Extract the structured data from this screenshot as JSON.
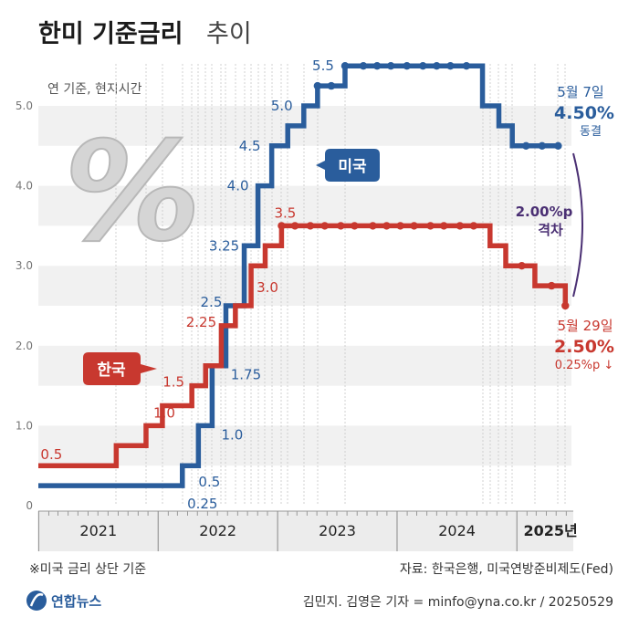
{
  "title": {
    "bold": "한미 기준금리",
    "light": "추이"
  },
  "subtitle": "연 기준, 현지시간",
  "footnote": "※미국 금리 상단 기준",
  "source": "자료: 한국은행, 미국연방준비제도(Fed)",
  "credit": "김민지. 김영은 기자 = minfo@yna.co.kr / 20250529",
  "logo_text": "연합뉴스",
  "chart_data": {
    "type": "line",
    "step": true,
    "ylim": [
      0,
      5.5
    ],
    "y_ticks": [
      "0",
      "1.0",
      "2.0",
      "3.0",
      "4.0",
      "5.0"
    ],
    "y_tick_values": [
      0,
      1.0,
      2.0,
      3.0,
      4.0,
      5.0
    ],
    "year_labels": [
      "2021",
      "2022",
      "2023",
      "2024",
      "2025년"
    ],
    "grid": "horizontal bands",
    "series": [
      {
        "name": "미국",
        "color": "#2a5d9c",
        "points": [
          [
            "2020-12-31",
            0.25
          ],
          [
            "2022-03-16",
            0.5
          ],
          [
            "2022-05-04",
            1.0
          ],
          [
            "2022-06-15",
            1.75
          ],
          [
            "2022-07-27",
            2.5
          ],
          [
            "2022-09-21",
            3.25
          ],
          [
            "2022-11-02",
            4.0
          ],
          [
            "2022-12-14",
            4.5
          ],
          [
            "2023-02-01",
            4.75
          ],
          [
            "2023-03-22",
            5.0
          ],
          [
            "2023-05-03",
            5.25
          ],
          [
            "2023-07-26",
            5.5
          ],
          [
            "2024-09-18",
            5.0
          ],
          [
            "2024-11-07",
            4.75
          ],
          [
            "2024-12-18",
            4.5
          ],
          [
            "2025-05-07",
            4.5
          ]
        ],
        "markers": [
          [
            "2023-05-03",
            5.25
          ],
          [
            "2023-06-14",
            5.25
          ],
          [
            "2023-07-26",
            5.5
          ],
          [
            "2023-09-20",
            5.5
          ],
          [
            "2023-11-01",
            5.5
          ],
          [
            "2023-12-13",
            5.5
          ],
          [
            "2024-01-31",
            5.5
          ],
          [
            "2024-03-20",
            5.5
          ],
          [
            "2024-05-01",
            5.5
          ],
          [
            "2024-06-12",
            5.5
          ],
          [
            "2024-07-31",
            5.5
          ],
          [
            "2025-01-29",
            4.5
          ],
          [
            "2025-03-19",
            4.5
          ],
          [
            "2025-05-07",
            4.5
          ]
        ],
        "labels": [
          {
            "text": "0.25",
            "at": [
              "2022-03-16",
              0.25
            ]
          },
          {
            "text": "0.5",
            "at": [
              "2022-05-04",
              0.5
            ]
          },
          {
            "text": "1.0",
            "at": [
              "2022-06-15",
              1.0
            ]
          },
          {
            "text": "1.75",
            "at": [
              "2022-07-27",
              1.75
            ]
          },
          {
            "text": "2.5",
            "at": [
              "2022-07-27",
              2.5
            ]
          },
          {
            "text": "3.25",
            "at": [
              "2022-09-21",
              3.25
            ]
          },
          {
            "text": "4.0",
            "at": [
              "2022-11-02",
              4.0
            ]
          },
          {
            "text": "4.5",
            "at": [
              "2022-12-14",
              4.5
            ]
          },
          {
            "text": "5.0",
            "at": [
              "2023-03-22",
              5.0
            ]
          },
          {
            "text": "5.5",
            "at": [
              "2023-07-26",
              5.5
            ]
          }
        ],
        "end_annotation": {
          "date": "5월 7일",
          "value": "4.50%",
          "note": "동결"
        }
      },
      {
        "name": "한국",
        "color": "#c8382f",
        "points": [
          [
            "2020-12-31",
            0.5
          ],
          [
            "2021-08-26",
            0.75
          ],
          [
            "2021-11-25",
            1.0
          ],
          [
            "2022-01-14",
            1.25
          ],
          [
            "2022-04-14",
            1.5
          ],
          [
            "2022-05-26",
            1.75
          ],
          [
            "2022-07-13",
            2.25
          ],
          [
            "2022-08-25",
            2.5
          ],
          [
            "2022-10-12",
            3.0
          ],
          [
            "2022-11-24",
            3.25
          ],
          [
            "2023-01-13",
            3.5
          ],
          [
            "2024-10-11",
            3.25
          ],
          [
            "2024-11-28",
            3.0
          ],
          [
            "2025-02-25",
            2.75
          ],
          [
            "2025-05-29",
            2.5
          ]
        ],
        "markers": [
          [
            "2023-01-13",
            3.5
          ],
          [
            "2023-02-23",
            3.5
          ],
          [
            "2023-04-11",
            3.5
          ],
          [
            "2023-05-25",
            3.5
          ],
          [
            "2023-07-13",
            3.5
          ],
          [
            "2023-08-24",
            3.5
          ],
          [
            "2023-10-19",
            3.5
          ],
          [
            "2023-11-30",
            3.5
          ],
          [
            "2024-01-11",
            3.5
          ],
          [
            "2024-02-22",
            3.5
          ],
          [
            "2024-04-12",
            3.5
          ],
          [
            "2024-05-23",
            3.5
          ],
          [
            "2024-07-11",
            3.5
          ],
          [
            "2024-08-22",
            3.5
          ],
          [
            "2025-01-16",
            3.0
          ],
          [
            "2025-04-17",
            2.75
          ],
          [
            "2025-05-29",
            2.5
          ]
        ],
        "labels": [
          {
            "text": "0.5",
            "at": [
              "2021-01-01",
              0.5
            ]
          },
          {
            "text": "1.0",
            "at": [
              "2021-11-25",
              1.0
            ]
          },
          {
            "text": "1.5",
            "at": [
              "2022-04-14",
              1.5
            ]
          },
          {
            "text": "2.25",
            "at": [
              "2022-07-13",
              2.25
            ]
          },
          {
            "text": "3.0",
            "at": [
              "2022-10-12",
              3.0
            ]
          },
          {
            "text": "3.5",
            "at": [
              "2023-01-13",
              3.5
            ]
          }
        ],
        "end_annotation": {
          "date": "5월 29일",
          "value": "2.50%",
          "note": "0.25%p ↓"
        }
      }
    ],
    "gap_annotation": {
      "value": "2.00%p",
      "label": "격차"
    }
  }
}
